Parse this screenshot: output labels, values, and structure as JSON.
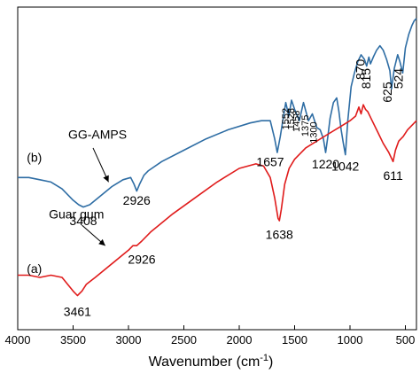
{
  "chart_data": {
    "type": "line",
    "title": "",
    "xlabel": "Wavenumber (cm",
    "xlabel_sup": "-1",
    "xlabel_close": ")",
    "ylabel": "",
    "xlim": [
      4000,
      400
    ],
    "x_reversed": true,
    "x_ticks": [
      "4000",
      "3500",
      "3000",
      "2500",
      "2000",
      "1500",
      "1000",
      "500"
    ],
    "y_ticks_shown": false,
    "grid": false,
    "series": [
      {
        "name": "GG-AMPS",
        "tag": "(b)",
        "color": "#2e6da4",
        "x": [
          4000,
          3900,
          3800,
          3700,
          3600,
          3500,
          3450,
          3408,
          3350,
          3250,
          3150,
          3050,
          2980,
          2950,
          2926,
          2900,
          2860,
          2820,
          2700,
          2500,
          2300,
          2100,
          1900,
          1800,
          1720,
          1680,
          1657,
          1630,
          1600,
          1580,
          1552,
          1528,
          1500,
          1458,
          1420,
          1375,
          1340,
          1300,
          1270,
          1240,
          1220,
          1200,
          1180,
          1150,
          1120,
          1100,
          1080,
          1060,
          1042,
          1020,
          990,
          960,
          930,
          900,
          870,
          850,
          830,
          815,
          790,
          760,
          730,
          700,
          670,
          640,
          625,
          600,
          570,
          550,
          524,
          500,
          470,
          440,
          420,
          400
        ],
        "y": [
          0.45,
          0.45,
          0.44,
          0.43,
          0.4,
          0.35,
          0.33,
          0.32,
          0.33,
          0.37,
          0.41,
          0.44,
          0.45,
          0.42,
          0.39,
          0.42,
          0.46,
          0.48,
          0.52,
          0.57,
          0.62,
          0.66,
          0.69,
          0.7,
          0.7,
          0.62,
          0.56,
          0.63,
          0.72,
          0.78,
          0.72,
          0.79,
          0.75,
          0.7,
          0.78,
          0.7,
          0.73,
          0.67,
          0.66,
          0.62,
          0.56,
          0.63,
          0.71,
          0.78,
          0.8,
          0.74,
          0.66,
          0.6,
          0.55,
          0.7,
          0.85,
          0.91,
          0.96,
          0.99,
          0.97,
          0.94,
          0.98,
          0.95,
          0.98,
          1.01,
          1.03,
          1.01,
          0.97,
          0.92,
          0.84,
          0.93,
          0.99,
          0.96,
          0.91,
          1.02,
          1.08,
          1.12,
          1.14,
          1.15
        ]
      },
      {
        "name": "Guar gum",
        "tag": "(a)",
        "color": "#e01b1b",
        "x": [
          4000,
          3900,
          3800,
          3700,
          3600,
          3550,
          3500,
          3461,
          3420,
          3380,
          3300,
          3200,
          3100,
          3000,
          2960,
          2926,
          2880,
          2800,
          2600,
          2400,
          2200,
          2000,
          1850,
          1780,
          1720,
          1680,
          1650,
          1638,
          1620,
          1590,
          1550,
          1500,
          1400,
          1300,
          1200,
          1100,
          1000,
          950,
          920,
          900,
          880,
          860,
          840,
          800,
          750,
          700,
          650,
          611,
          590,
          560,
          520,
          480,
          440,
          400
        ],
        "y": [
          0.02,
          0.02,
          0.01,
          0.02,
          0.01,
          -0.02,
          -0.05,
          -0.07,
          -0.05,
          -0.02,
          0.01,
          0.05,
          0.09,
          0.13,
          0.15,
          0.15,
          0.17,
          0.21,
          0.29,
          0.36,
          0.43,
          0.49,
          0.51,
          0.5,
          0.45,
          0.36,
          0.27,
          0.26,
          0.31,
          0.42,
          0.49,
          0.53,
          0.58,
          0.61,
          0.64,
          0.67,
          0.7,
          0.72,
          0.76,
          0.73,
          0.77,
          0.75,
          0.74,
          0.7,
          0.65,
          0.6,
          0.56,
          0.52,
          0.57,
          0.61,
          0.63,
          0.66,
          0.68,
          0.7
        ]
      }
    ],
    "annotations": [
      {
        "text": "GG-AMPS",
        "x": 3280,
        "y": 0.62,
        "size": "normal"
      },
      {
        "text": "(b)",
        "x": 3850,
        "y": 0.52,
        "size": "normal"
      },
      {
        "text": "3408",
        "x": 3408,
        "y": 0.24,
        "size": "normal"
      },
      {
        "text": "2926",
        "x": 2926,
        "y": 0.33,
        "size": "normal"
      },
      {
        "text": "1657",
        "x": 1720,
        "y": 0.5,
        "size": "normal"
      },
      {
        "text": "1220",
        "x": 1220,
        "y": 0.49,
        "size": "normal"
      },
      {
        "text": "1042",
        "x": 1042,
        "y": 0.48,
        "size": "normal"
      },
      {
        "text": "Guar gum",
        "x": 3470,
        "y": 0.27,
        "size": "normal"
      },
      {
        "text": "(a)",
        "x": 3850,
        "y": 0.03,
        "size": "normal"
      },
      {
        "text": "2926",
        "x": 2880,
        "y": 0.07,
        "size": "normal"
      },
      {
        "text": "3461",
        "x": 3461,
        "y": -0.16,
        "size": "normal"
      },
      {
        "text": "1638",
        "x": 1638,
        "y": 0.18,
        "size": "normal"
      },
      {
        "text": "611",
        "x": 611,
        "y": 0.44,
        "size": "normal"
      },
      {
        "text": "1552",
        "x": 1552,
        "y": 0.66,
        "size": "small",
        "rotate": true
      },
      {
        "text": "1528",
        "x": 1505,
        "y": 0.66,
        "size": "small",
        "rotate": true
      },
      {
        "text": "1458",
        "x": 1458,
        "y": 0.65,
        "size": "small",
        "rotate": true
      },
      {
        "text": "1375",
        "x": 1375,
        "y": 0.63,
        "size": "small",
        "rotate": true
      },
      {
        "text": "1300",
        "x": 1300,
        "y": 0.6,
        "size": "small",
        "rotate": true
      },
      {
        "text": "870",
        "x": 870,
        "y": 0.88,
        "size": "normal",
        "rotate": true
      },
      {
        "text": "815",
        "x": 815,
        "y": 0.84,
        "size": "normal",
        "rotate": true
      },
      {
        "text": "625",
        "x": 625,
        "y": 0.78,
        "size": "normal",
        "rotate": true
      },
      {
        "text": "524",
        "x": 524,
        "y": 0.84,
        "size": "normal",
        "rotate": true
      }
    ],
    "arrows": [
      {
        "from": [
          3320,
          0.58
        ],
        "to": [
          3180,
          0.43
        ]
      },
      {
        "from": [
          3420,
          0.24
        ],
        "to": [
          3210,
          0.15
        ]
      }
    ]
  }
}
